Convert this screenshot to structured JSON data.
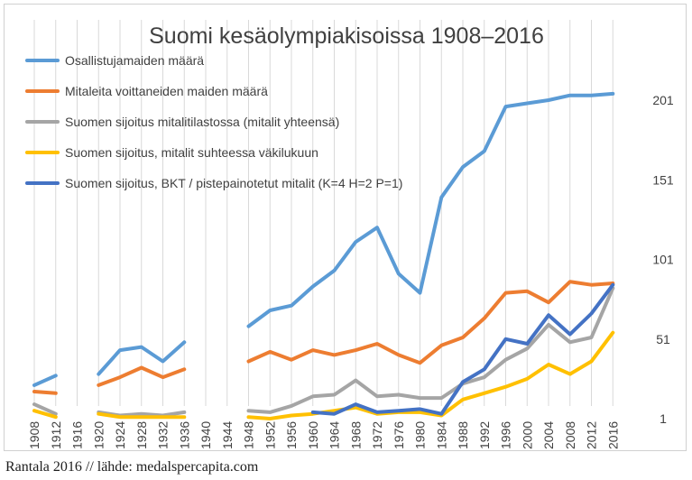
{
  "source_note": "Rantala 2016 // lähde: medalspercapita.com",
  "chart_data": {
    "type": "line",
    "title": "Suomi kesäolympiakisoissa 1908–2016",
    "xlabel": "",
    "ylabel": "",
    "grid": "vertical gridlines only",
    "legend_position": "top-left",
    "y_axis_side": "right",
    "y_reversed_note": "sijoitus-sarjoissa pienempi arvo piirretään alemmas (1 = paras)",
    "ylim": [
      1,
      221
    ],
    "y_ticks": [
      1,
      51,
      101,
      151,
      201
    ],
    "x": [
      "1908",
      "1912",
      "1916",
      "1920",
      "1924",
      "1928",
      "1932",
      "1936",
      "1940",
      "1944",
      "1948",
      "1952",
      "1956",
      "1960",
      "1964",
      "1968",
      "1972",
      "1976",
      "1980",
      "1984",
      "1988",
      "1992",
      "1996",
      "2000",
      "2004",
      "2008",
      "2012",
      "2016"
    ],
    "series": [
      {
        "name": "Osallistujamaiden määrä",
        "color": "#5b9bd5",
        "values": [
          22,
          28,
          null,
          29,
          44,
          46,
          37,
          49,
          null,
          null,
          59,
          69,
          72,
          84,
          94,
          112,
          121,
          92,
          80,
          140,
          159,
          169,
          197,
          199,
          201,
          204,
          204,
          205
        ]
      },
      {
        "name": "Mitaleita voittaneiden maiden määrä",
        "color": "#ed7d31",
        "values": [
          18,
          17,
          null,
          22,
          27,
          33,
          27,
          32,
          null,
          null,
          37,
          43,
          38,
          44,
          41,
          44,
          48,
          41,
          36,
          47,
          52,
          64,
          80,
          81,
          74,
          87,
          85,
          86
        ]
      },
      {
        "name": "Suomen sijoitus mitalitilastossa (mitalit yhteensä)",
        "color": "#a5a5a5",
        "values": [
          10,
          4,
          null,
          5,
          3,
          4,
          3,
          5,
          null,
          null,
          6,
          5,
          9,
          15,
          16,
          25,
          15,
          16,
          14,
          14,
          23,
          27,
          38,
          45,
          60,
          49,
          52,
          83
        ]
      },
      {
        "name": "Suomen sijoitus, mitalit suhteessa väkilukuun",
        "color": "#ffc000",
        "values": [
          6,
          2,
          null,
          4,
          2,
          2,
          2,
          2,
          null,
          null,
          2,
          1,
          3,
          4,
          6,
          8,
          4,
          5,
          5,
          3,
          13,
          17,
          21,
          26,
          35,
          29,
          37,
          55
        ]
      },
      {
        "name": "Suomen sijoitus, BKT / pistepainotetut mitalit (K=4 H=2 P=1)",
        "color": "#4472c4",
        "values": [
          null,
          null,
          null,
          null,
          null,
          null,
          null,
          null,
          null,
          null,
          null,
          null,
          null,
          5,
          4,
          10,
          5,
          6,
          7,
          4,
          24,
          32,
          51,
          48,
          66,
          54,
          67,
          85
        ]
      }
    ]
  }
}
